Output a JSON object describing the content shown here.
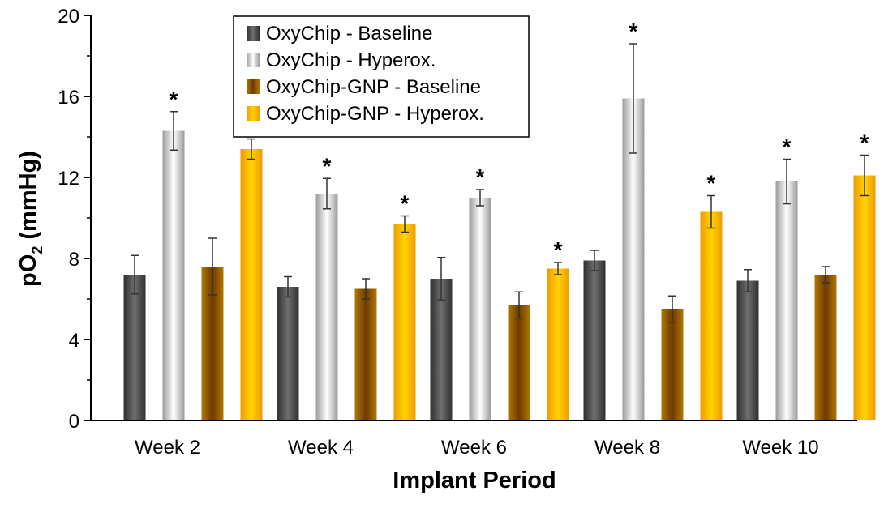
{
  "chart_data": {
    "type": "bar",
    "ylabel": "pO",
    "ylabel_sub": "2",
    "ylabel_unit": " (mmHg)",
    "xlabel": "Implant Period",
    "ylim": [
      0,
      20
    ],
    "yticks": [
      0,
      4,
      8,
      12,
      16,
      20
    ],
    "minor_ticks": true,
    "legend_placement": "top-center",
    "categories": [
      "Week 2",
      "Week 4",
      "Week 6",
      "Week 8",
      "Week 10"
    ],
    "significance_mark": "*",
    "series": [
      {
        "name": "OxyChip - Baseline",
        "values": [
          7.2,
          6.6,
          7.0,
          7.9,
          6.9
        ],
        "errors": [
          0.95,
          0.5,
          1.05,
          0.5,
          0.55
        ],
        "significant": [
          false,
          false,
          false,
          false,
          false
        ],
        "colors": [
          "#2f2f2f",
          "#6f6f6f",
          "#2f2f2f"
        ]
      },
      {
        "name": "OxyChip - Hyperox.",
        "values": [
          14.3,
          11.2,
          11.0,
          15.9,
          11.8
        ],
        "errors": [
          0.95,
          0.75,
          0.4,
          2.7,
          1.1
        ],
        "significant": [
          true,
          true,
          true,
          true,
          true
        ],
        "colors": [
          "#9a9a9a",
          "#ffffff",
          "#9a9a9a"
        ]
      },
      {
        "name": "OxyChip-GNP - Baseline",
        "values": [
          7.6,
          6.5,
          5.7,
          5.5,
          7.2
        ],
        "errors": [
          1.4,
          0.5,
          0.65,
          0.65,
          0.4
        ],
        "significant": [
          false,
          false,
          false,
          false,
          false
        ],
        "colors": [
          "#b07800",
          "#6e3a00",
          "#b07800"
        ]
      },
      {
        "name": "OxyChip-GNP - Hyperox.",
        "values": [
          13.4,
          9.7,
          7.5,
          10.3,
          12.1
        ],
        "errors": [
          0.5,
          0.4,
          0.3,
          0.8,
          1.0
        ],
        "significant": [
          true,
          true,
          true,
          true,
          true
        ],
        "colors": [
          "#ef9a00",
          "#ffd400",
          "#ef9a00"
        ]
      }
    ]
  }
}
